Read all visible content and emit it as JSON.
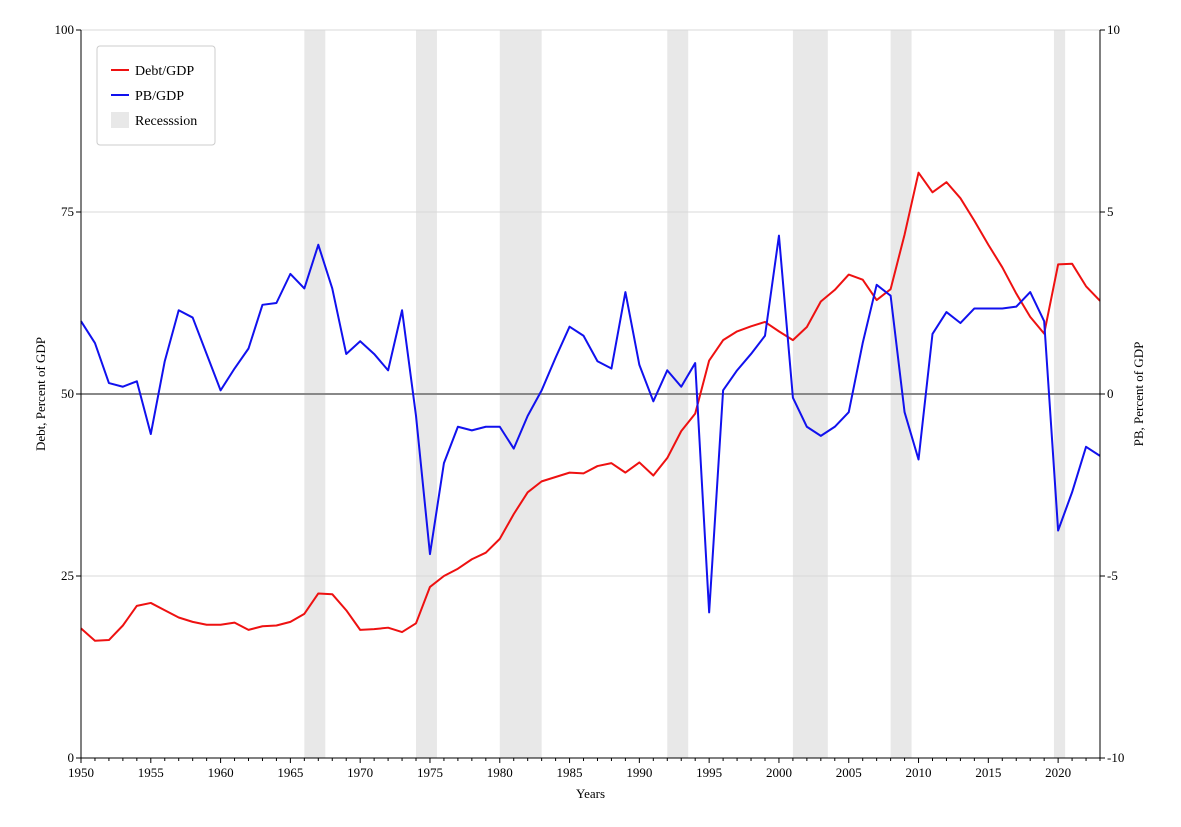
{
  "chart_data": {
    "type": "line",
    "title": "",
    "xlabel": "Years",
    "ylabel_left": "Debt, Percent of GDP",
    "ylabel_right": "PB, Percent of GDP",
    "xlim": [
      1950,
      2023
    ],
    "ylim_left": [
      0,
      100
    ],
    "ylim_right": [
      -10,
      10
    ],
    "x_ticks": [
      1950,
      1955,
      1960,
      1965,
      1970,
      1975,
      1980,
      1985,
      1990,
      1995,
      2000,
      2005,
      2010,
      2015,
      2020
    ],
    "y_ticks_left": [
      0,
      25,
      50,
      75,
      100
    ],
    "y_ticks_right": [
      -10,
      -5,
      0,
      5,
      10
    ],
    "grid": true,
    "zero_line_right": 0,
    "legend_position": "top-left",
    "legend": [
      "Debt/GDP",
      "PB/GDP",
      "Recesssion"
    ],
    "recessions": [
      [
        1966,
        1967.5
      ],
      [
        1974,
        1975.5
      ],
      [
        1980,
        1983
      ],
      [
        1992,
        1993.5
      ],
      [
        2001,
        2003.5
      ],
      [
        2008,
        2009.5
      ],
      [
        2019.7,
        2020.5
      ]
    ],
    "x": [
      1950,
      1951,
      1952,
      1953,
      1954,
      1955,
      1956,
      1957,
      1958,
      1959,
      1960,
      1961,
      1962,
      1963,
      1964,
      1965,
      1966,
      1967,
      1968,
      1969,
      1970,
      1971,
      1972,
      1973,
      1974,
      1975,
      1976,
      1977,
      1978,
      1979,
      1980,
      1981,
      1982,
      1983,
      1984,
      1985,
      1986,
      1987,
      1988,
      1989,
      1990,
      1991,
      1992,
      1993,
      1994,
      1995,
      1996,
      1997,
      1998,
      1999,
      2000,
      2001,
      2002,
      2003,
      2004,
      2005,
      2006,
      2007,
      2008,
      2009,
      2010,
      2011,
      2012,
      2013,
      2014,
      2015,
      2016,
      2017,
      2018,
      2019,
      2020,
      2021,
      2022,
      2023
    ],
    "series": [
      {
        "name": "Debt/GDP",
        "axis": "left",
        "color": "#ee1111",
        "values": [
          17.8,
          16.1,
          16.2,
          18.2,
          20.9,
          21.3,
          20.3,
          19.3,
          18.7,
          18.3,
          18.3,
          18.6,
          17.6,
          18.1,
          18.2,
          18.7,
          19.8,
          22.6,
          22.5,
          20.3,
          17.6,
          17.7,
          17.9,
          17.3,
          18.5,
          23.5,
          25.0,
          26.0,
          27.3,
          28.2,
          30.1,
          33.5,
          36.5,
          38.0,
          38.6,
          39.2,
          39.1,
          40.1,
          40.5,
          39.2,
          40.6,
          38.8,
          41.2,
          44.9,
          47.3,
          54.6,
          57.4,
          58.6,
          59.3,
          59.9,
          58.6,
          57.4,
          59.2,
          62.7,
          64.3,
          66.4,
          65.7,
          62.9,
          64.4,
          71.9,
          80.4,
          77.7,
          79.1,
          76.9,
          73.8,
          70.5,
          67.4,
          63.8,
          60.6,
          58.3,
          67.8,
          67.9,
          64.8,
          62.8
        ]
      },
      {
        "name": "PB/GDP",
        "axis": "right",
        "color": "#1111ee",
        "values": [
          2.0,
          1.4,
          0.3,
          0.2,
          0.35,
          -1.1,
          0.9,
          2.3,
          2.1,
          1.1,
          0.1,
          0.7,
          1.25,
          2.45,
          2.5,
          3.3,
          2.9,
          4.1,
          2.9,
          1.1,
          1.45,
          1.1,
          0.65,
          2.3,
          -0.6,
          -4.4,
          -1.9,
          -0.9,
          -1.0,
          -0.9,
          -0.9,
          -1.5,
          -0.6,
          0.1,
          1.0,
          1.85,
          1.6,
          0.9,
          0.7,
          2.8,
          0.8,
          -0.2,
          0.65,
          0.2,
          0.85,
          -6.0,
          0.1,
          0.65,
          1.1,
          1.6,
          4.35,
          -0.1,
          -0.9,
          -1.15,
          -0.9,
          -0.5,
          1.4,
          3.0,
          2.7,
          -0.5,
          -1.8,
          1.65,
          2.25,
          1.95,
          2.35,
          2.35,
          2.35,
          2.4,
          2.8,
          2.0,
          -3.75,
          -2.7,
          -1.45,
          -1.7
        ]
      }
    ]
  }
}
